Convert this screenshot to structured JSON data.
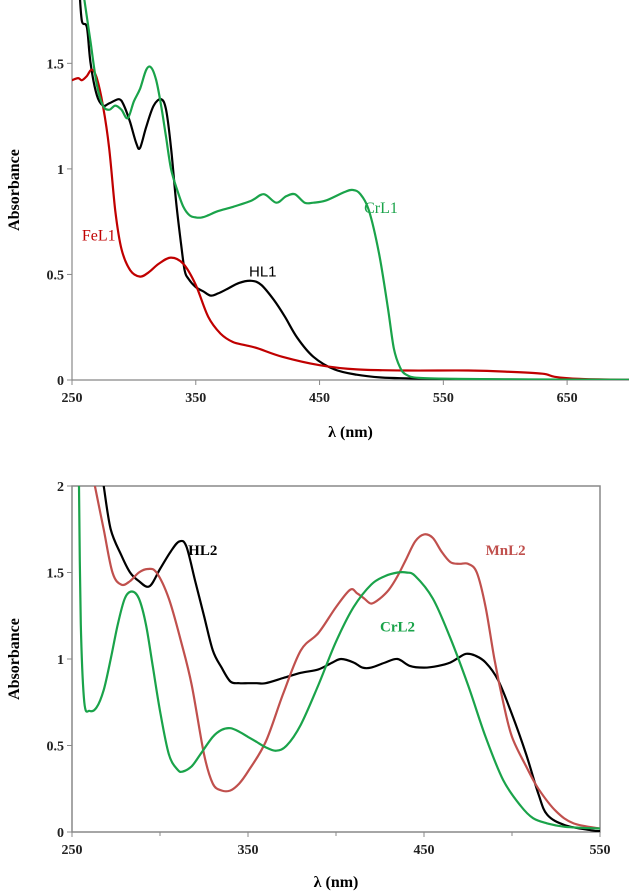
{
  "chart_data": [
    {
      "type": "line",
      "xlabel": "λ (nm)",
      "ylabel": "Absorbance",
      "xlim": [
        250,
        700
      ],
      "ylim": [
        0,
        1.8
      ],
      "xticks": [
        250,
        350,
        450,
        550,
        650
      ],
      "yticks": [
        0,
        0.5,
        1,
        1.5
      ],
      "ytick_labels": [
        "0",
        "0.5",
        "1",
        "1.5"
      ],
      "grid": false,
      "series": [
        {
          "name": "HL1",
          "color": "#000000",
          "x": [
            256,
            258,
            262,
            265,
            270,
            275,
            280,
            288,
            292,
            297,
            302,
            305,
            310,
            316,
            322,
            326,
            330,
            334,
            338,
            341,
            344,
            350,
            356,
            362,
            368,
            375,
            385,
            395,
            403,
            413,
            422,
            432,
            445,
            462,
            480,
            500,
            520,
            545,
            580,
            620,
            650,
            680,
            700
          ],
          "y": [
            1.85,
            1.7,
            1.67,
            1.5,
            1.35,
            1.3,
            1.31,
            1.33,
            1.3,
            1.22,
            1.12,
            1.1,
            1.2,
            1.3,
            1.33,
            1.28,
            1.1,
            0.85,
            0.65,
            0.52,
            0.48,
            0.44,
            0.42,
            0.4,
            0.41,
            0.43,
            0.46,
            0.47,
            0.45,
            0.38,
            0.3,
            0.2,
            0.11,
            0.05,
            0.025,
            0.012,
            0.008,
            0.005,
            0.003,
            0.002,
            0.002,
            0.001,
            0.001
          ]
        },
        {
          "name": "FeL1",
          "color": "#c00000",
          "x": [
            250,
            255,
            258,
            262,
            266,
            270,
            275,
            280,
            285,
            290,
            297,
            305,
            312,
            320,
            330,
            340,
            350,
            360,
            370,
            380,
            390,
            400,
            420,
            450,
            480,
            520,
            570,
            600,
            630,
            640,
            660,
            700
          ],
          "y": [
            1.42,
            1.43,
            1.42,
            1.44,
            1.47,
            1.43,
            1.3,
            1.1,
            0.8,
            0.62,
            0.52,
            0.49,
            0.51,
            0.55,
            0.58,
            0.55,
            0.45,
            0.3,
            0.22,
            0.18,
            0.165,
            0.15,
            0.11,
            0.07,
            0.05,
            0.045,
            0.045,
            0.04,
            0.03,
            0.015,
            0.005,
            0.0
          ]
        },
        {
          "name": "CrL1",
          "color": "#1aa34a",
          "x": [
            260,
            265,
            270,
            275,
            280,
            285,
            290,
            295,
            300,
            305,
            310,
            314,
            318,
            322,
            326,
            330,
            335,
            340,
            345,
            350,
            355,
            360,
            368,
            380,
            395,
            405,
            415,
            423,
            430,
            438,
            445,
            455,
            470,
            477,
            483,
            490,
            498,
            505,
            510,
            515,
            520,
            530,
            560,
            600,
            650,
            700
          ],
          "y": [
            1.8,
            1.6,
            1.4,
            1.3,
            1.28,
            1.3,
            1.28,
            1.24,
            1.32,
            1.38,
            1.47,
            1.48,
            1.42,
            1.3,
            1.15,
            1.0,
            0.9,
            0.82,
            0.78,
            0.77,
            0.77,
            0.78,
            0.8,
            0.82,
            0.85,
            0.88,
            0.84,
            0.87,
            0.88,
            0.84,
            0.84,
            0.85,
            0.89,
            0.9,
            0.88,
            0.8,
            0.6,
            0.35,
            0.15,
            0.06,
            0.025,
            0.01,
            0.005,
            0.003,
            0.002,
            0.001
          ]
        }
      ],
      "annotations": [
        {
          "text": "HL1",
          "x": 393,
          "y": 0.49,
          "color": "#000000",
          "style": "sans"
        },
        {
          "text": "FeL1",
          "x": 258,
          "y": 0.66,
          "color": "#c00000",
          "style": "serif"
        },
        {
          "text": "CrL1",
          "x": 486,
          "y": 0.79,
          "color": "#1aa34a",
          "style": "serif"
        }
      ]
    },
    {
      "type": "line",
      "xlabel": "λ (nm)",
      "ylabel": "Absorbance",
      "xlim": [
        250,
        550
      ],
      "ylim": [
        0,
        2
      ],
      "xticks": [
        250,
        350,
        450,
        550
      ],
      "yticks": [
        0,
        0.5,
        1,
        1.5,
        2
      ],
      "ytick_labels": [
        "0",
        "0.5",
        "1",
        "1.5",
        "2"
      ],
      "grid": false,
      "series": [
        {
          "name": "HL2",
          "color": "#000000",
          "x": [
            268,
            272,
            278,
            283,
            288,
            294,
            300,
            306,
            311,
            315,
            320,
            325,
            330,
            335,
            340,
            345,
            350,
            355,
            360,
            370,
            380,
            390,
            398,
            403,
            410,
            415,
            420,
            428,
            435,
            442,
            450,
            458,
            465,
            470,
            474,
            479,
            485,
            492,
            500,
            508,
            515,
            520,
            530,
            545,
            550
          ],
          "y": [
            2.0,
            1.75,
            1.6,
            1.5,
            1.45,
            1.42,
            1.52,
            1.62,
            1.68,
            1.65,
            1.45,
            1.25,
            1.05,
            0.95,
            0.87,
            0.86,
            0.86,
            0.86,
            0.86,
            0.89,
            0.92,
            0.94,
            0.98,
            1.0,
            0.98,
            0.95,
            0.95,
            0.98,
            1.0,
            0.96,
            0.95,
            0.96,
            0.98,
            1.01,
            1.03,
            1.02,
            0.98,
            0.88,
            0.68,
            0.45,
            0.22,
            0.1,
            0.04,
            0.01,
            0.005
          ]
        },
        {
          "name": "MnL2",
          "color": "#c0504d",
          "x": [
            263,
            268,
            273,
            278,
            283,
            288,
            293,
            298,
            305,
            312,
            318,
            325,
            330,
            335,
            340,
            345,
            350,
            360,
            370,
            380,
            390,
            400,
            408,
            412,
            416,
            420,
            425,
            430,
            435,
            440,
            445,
            450,
            455,
            460,
            465,
            470,
            475,
            480,
            485,
            490,
            495,
            500,
            508,
            515,
            525,
            535,
            550
          ],
          "y": [
            2.0,
            1.75,
            1.5,
            1.43,
            1.45,
            1.5,
            1.52,
            1.5,
            1.35,
            1.1,
            0.85,
            0.45,
            0.28,
            0.24,
            0.24,
            0.28,
            0.35,
            0.52,
            0.8,
            1.05,
            1.15,
            1.3,
            1.4,
            1.38,
            1.35,
            1.32,
            1.35,
            1.4,
            1.48,
            1.58,
            1.68,
            1.72,
            1.7,
            1.62,
            1.56,
            1.55,
            1.55,
            1.5,
            1.3,
            1.0,
            0.75,
            0.55,
            0.38,
            0.25,
            0.12,
            0.05,
            0.02
          ]
        },
        {
          "name": "CrL2",
          "color": "#1aa34a",
          "x": [
            254,
            255,
            257,
            260,
            264,
            268,
            272,
            276,
            280,
            284,
            288,
            292,
            296,
            300,
            305,
            310,
            313,
            318,
            323,
            330,
            335,
            340,
            345,
            350,
            355,
            360,
            366,
            372,
            380,
            390,
            400,
            410,
            420,
            428,
            435,
            440,
            445,
            455,
            465,
            475,
            485,
            495,
            505,
            512,
            520,
            530,
            550
          ],
          "y": [
            2.0,
            1.2,
            0.75,
            0.7,
            0.72,
            0.82,
            1.0,
            1.2,
            1.35,
            1.39,
            1.35,
            1.2,
            0.95,
            0.7,
            0.45,
            0.36,
            0.35,
            0.38,
            0.45,
            0.55,
            0.59,
            0.6,
            0.58,
            0.55,
            0.52,
            0.49,
            0.47,
            0.5,
            0.62,
            0.85,
            1.1,
            1.3,
            1.43,
            1.48,
            1.5,
            1.5,
            1.48,
            1.35,
            1.12,
            0.85,
            0.55,
            0.3,
            0.15,
            0.08,
            0.05,
            0.03,
            0.02
          ]
        }
      ],
      "annotations": [
        {
          "text": "HL2",
          "x": 316,
          "y": 1.6,
          "color": "#000000",
          "style": "bold"
        },
        {
          "text": "MnL2",
          "x": 485,
          "y": 1.6,
          "color": "#c0504d",
          "style": "bold"
        },
        {
          "text": "CrL2",
          "x": 425,
          "y": 1.16,
          "color": "#1aa34a",
          "style": "bold"
        }
      ]
    }
  ]
}
